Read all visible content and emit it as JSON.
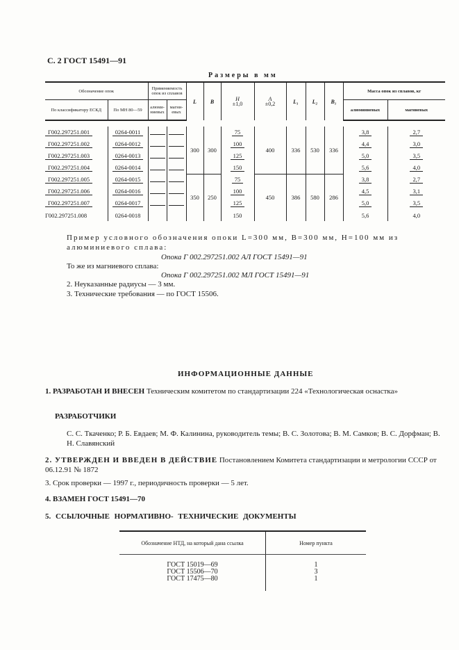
{
  "header": "С. 2 ГОСТ 15491—91",
  "caption": "Размеры в мм",
  "table": {
    "h_designation": "Обозначение опок",
    "h_eskd": "По классификатору ЕСКД",
    "h_mn": "По МН 80—59",
    "h_applic": "Применяемость опок из сплавов",
    "h_al": "алюми-ниевых",
    "h_mg": "магни-евых",
    "h_L": "L",
    "h_B": "B",
    "h_H": "H",
    "h_Htol": "±1,0",
    "h_A": "A",
    "h_Atol": "±0,2",
    "h_L1": "L₁",
    "h_L2": "L₂",
    "h_B1": "B₁",
    "h_mass": "Масса опок из сплавов, кг",
    "h_mass_al": "алюминиевых",
    "h_mass_mg": "магниевых",
    "rows": [
      {
        "eskd": "Г002.297251.001",
        "mn": "0264-0011",
        "H": "75",
        "al": "3,8",
        "mg": "2,7"
      },
      {
        "eskd": "Г002.297251.002",
        "mn": "0264-0012",
        "H": "100",
        "al": "4,4",
        "mg": "3,0"
      },
      {
        "eskd": "Г002.297251.003",
        "mn": "0264-0013",
        "H": "125",
        "al": "5,0",
        "mg": "3,5"
      },
      {
        "eskd": "Г002.297251.004",
        "mn": "0264-0014",
        "H": "150",
        "al": "5,6",
        "mg": "4,0"
      },
      {
        "eskd": "Г002.297251.005",
        "mn": "0264-0015",
        "H": "75",
        "al": "3,8",
        "mg": "2,7"
      },
      {
        "eskd": "Г002.297251.006",
        "mn": "0264-0016",
        "H": "100",
        "al": "4,5",
        "mg": "3,1"
      },
      {
        "eskd": "Г002.297251.007",
        "mn": "0264-0017",
        "H": "125",
        "al": "5,0",
        "mg": "3,5"
      },
      {
        "eskd": "Г002.297251.008",
        "mn": "0264-0018",
        "H": "150",
        "al": "5,6",
        "mg": "4,0"
      }
    ],
    "groups": [
      {
        "L": "300",
        "B": "300",
        "A": "400",
        "L1": "336",
        "L2": "530",
        "B1": "336"
      },
      {
        "L": "350",
        "B": "250",
        "A": "450",
        "L1": "386",
        "L2": "580",
        "B1": "286"
      }
    ]
  },
  "example": {
    "line1": "Пример условного обозначения опоки L=300 мм, B=300 мм, H=100 мм из алюминиевого сплава:",
    "al_designation": "Опока Г 002.297251.002 АЛ ГОСТ 15491—91",
    "mg_intro": "То же из магниевого сплава:",
    "mg_designation": "Опока Г 002.297251.002 МЛ ГОСТ 15491—91",
    "note2": "2. Неуказанные радиусы — 3 мм.",
    "note3": "3. Технические требования — по ГОСТ 15506."
  },
  "info": {
    "title": "ИНФОРМАЦИОННЫЕ ДАННЫЕ",
    "i1_head": "1. РАЗРАБОТАН И ВНЕСЕН",
    "i1_text": "Техническим комитетом по стандартизации 224 «Технологическая оснастка»",
    "dev_head": "РАЗРАБОТЧИКИ",
    "dev_text": "С. С. Ткаченко; Р. Б. Евдаев; М. Ф. Калинина, руководитель темы; В. С. Золотова; В. М. Самков; В. С. Дорфман; В. Н. Славянский",
    "i2_head": "2. УТВЕРЖДЕН И ВВЕДЕН В ДЕЙСТВИЕ",
    "i2_text": "Постановлением Комитета стандартизации и метрологии СССР от 06.12.91 № 1872",
    "i3": "3. Срок проверки — 1997 г.,     периодичность проверки — 5 лет.",
    "i4": "4. ВЗАМЕН ГОСТ 15491—70",
    "i5": "5. ССЫЛОЧНЫЕ НОРМАТИВНО- ТЕХНИЧЕСКИЕ ДОКУМЕНТЫ"
  },
  "refs": {
    "h1": "Обозначение НТД, на который дана ссылка",
    "h2": "Номер пункта",
    "rows": [
      {
        "doc": "ГОСТ 15019—69",
        "item": "1"
      },
      {
        "doc": "ГОСТ 15506—70",
        "item": "3"
      },
      {
        "doc": "ГОСТ 17475—80",
        "item": "1"
      }
    ]
  }
}
